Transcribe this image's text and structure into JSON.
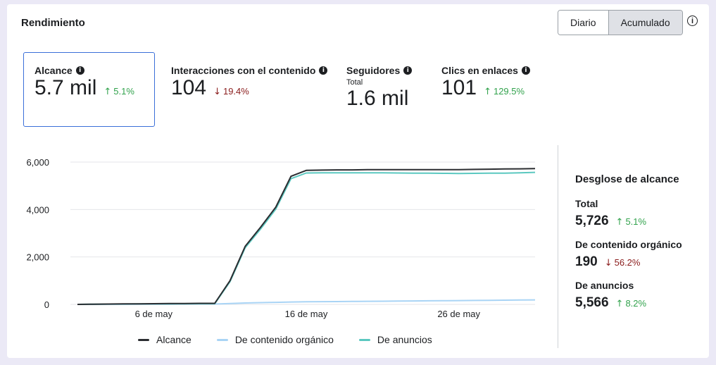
{
  "header": {
    "title": "Rendimiento",
    "toggle": [
      "Diario",
      "Acumulado"
    ],
    "active_toggle": "Acumulado",
    "info_icon": "info-icon"
  },
  "metrics": [
    {
      "label": "Alcance",
      "sub": "",
      "value": "5.7 mil",
      "delta": "5.1%",
      "direction": "up",
      "selected": true
    },
    {
      "label": "Interacciones con el contenido",
      "sub": "",
      "value": "104",
      "delta": "19.4%",
      "direction": "down",
      "selected": false
    },
    {
      "label": "Seguidores",
      "sub": "Total",
      "value": "1.6 mil",
      "delta": "",
      "direction": "",
      "selected": false
    },
    {
      "label": "Clics en enlaces",
      "sub": "",
      "value": "101",
      "delta": "129.5%",
      "direction": "up",
      "selected": false
    }
  ],
  "breakdown": {
    "title": "Desglose de alcance",
    "items": [
      {
        "label": "Total",
        "value": "5,726",
        "delta": "5.1%",
        "direction": "up"
      },
      {
        "label": "De contenido orgánico",
        "value": "190",
        "delta": "56.2%",
        "direction": "down"
      },
      {
        "label": "De anuncios",
        "value": "5,566",
        "delta": "8.2%",
        "direction": "up"
      }
    ]
  },
  "colors": {
    "up": "#31a24c",
    "down": "#8a1c1c",
    "selected_border": "#3b6fd9"
  },
  "chart_data": {
    "type": "line",
    "x": [
      "1 may",
      "2 may",
      "3 may",
      "4 may",
      "5 may",
      "6 may",
      "7 may",
      "8 may",
      "9 may",
      "10 may",
      "11 may",
      "12 may",
      "13 may",
      "14 may",
      "15 may",
      "16 may",
      "17 may",
      "18 may",
      "19 may",
      "20 may",
      "21 may",
      "22 may",
      "23 may",
      "24 may",
      "25 may",
      "26 may",
      "27 may",
      "28 may",
      "29 may",
      "30 may",
      "31 may"
    ],
    "xticks": [
      "6 de may",
      "16 de may",
      "26 de may"
    ],
    "yticks": [
      "0",
      "2,000",
      "4,000",
      "6,000"
    ],
    "ylim": [
      0,
      6000
    ],
    "grid": true,
    "legend_position": "bottom",
    "series": [
      {
        "name": "Alcance",
        "color": "#2b2d31",
        "values": [
          0,
          10,
          15,
          20,
          25,
          30,
          35,
          40,
          45,
          45,
          1000,
          2450,
          3250,
          4100,
          5400,
          5650,
          5660,
          5670,
          5670,
          5680,
          5680,
          5680,
          5680,
          5680,
          5680,
          5680,
          5690,
          5700,
          5710,
          5715,
          5726
        ]
      },
      {
        "name": "De contenido orgánico",
        "color": "#a9d4f5",
        "values": [
          0,
          0,
          2,
          4,
          5,
          8,
          10,
          12,
          14,
          15,
          40,
          60,
          75,
          85,
          100,
          110,
          115,
          120,
          125,
          130,
          135,
          140,
          145,
          150,
          155,
          160,
          165,
          170,
          178,
          185,
          190
        ]
      },
      {
        "name": "De anuncios",
        "color": "#5bc8c0",
        "values": [
          0,
          10,
          13,
          16,
          20,
          22,
          25,
          28,
          31,
          30,
          960,
          2390,
          3175,
          4015,
          5300,
          5540,
          5545,
          5550,
          5545,
          5550,
          5545,
          5540,
          5535,
          5530,
          5525,
          5520,
          5525,
          5530,
          5532,
          5545,
          5566
        ]
      }
    ]
  }
}
